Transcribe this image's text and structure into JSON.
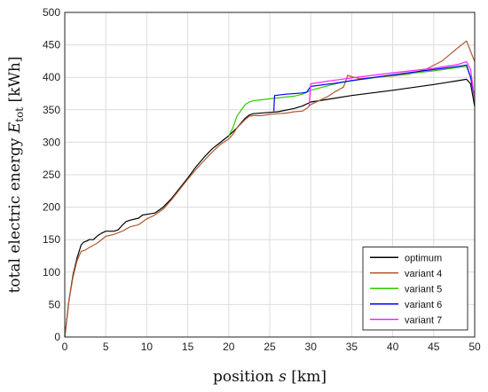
{
  "chart_data": {
    "type": "line",
    "title": "",
    "xlabel": {
      "prefix": "position ",
      "var": "s",
      "suffix": " [km]"
    },
    "ylabel": {
      "prefix": "total electric energy ",
      "var": "E",
      "sub": "tot",
      "suffix": " [kWh]"
    },
    "xlim": [
      0,
      50
    ],
    "ylim": [
      0,
      500
    ],
    "xticks": [
      "0",
      "5",
      "10",
      "15",
      "20",
      "25",
      "30",
      "35",
      "40",
      "45",
      "50"
    ],
    "yticks": [
      "0",
      "50",
      "100",
      "150",
      "200",
      "250",
      "300",
      "350",
      "400",
      "450",
      "500"
    ],
    "grid": true,
    "legend": "bottom-right",
    "series": [
      {
        "name": "optimum",
        "color": "#000000",
        "points": [
          [
            0,
            0
          ],
          [
            0.5,
            55
          ],
          [
            1,
            95
          ],
          [
            1.5,
            122
          ],
          [
            2,
            142
          ],
          [
            2.3,
            146
          ],
          [
            2.7,
            148
          ],
          [
            3,
            150
          ],
          [
            3.5,
            150
          ],
          [
            4,
            156
          ],
          [
            4.5,
            160
          ],
          [
            5,
            163
          ],
          [
            6,
            163
          ],
          [
            6.5,
            165
          ],
          [
            7,
            172
          ],
          [
            7.5,
            178
          ],
          [
            8,
            180
          ],
          [
            9,
            183
          ],
          [
            9.5,
            188
          ],
          [
            10,
            189
          ],
          [
            11,
            191
          ],
          [
            12,
            200
          ],
          [
            13,
            213
          ],
          [
            14,
            229
          ],
          [
            15,
            245
          ],
          [
            16,
            262
          ],
          [
            17,
            277
          ],
          [
            18,
            290
          ],
          [
            19,
            300
          ],
          [
            20,
            310
          ],
          [
            21,
            322
          ],
          [
            22,
            337
          ],
          [
            22.5,
            342
          ],
          [
            23,
            344
          ],
          [
            25,
            346
          ],
          [
            26,
            347
          ],
          [
            28,
            352
          ],
          [
            29,
            356
          ],
          [
            30,
            362
          ],
          [
            31,
            364
          ],
          [
            35,
            372
          ],
          [
            40,
            380
          ],
          [
            45,
            389
          ],
          [
            49,
            397
          ],
          [
            49.5,
            390
          ],
          [
            50,
            355
          ]
        ]
      },
      {
        "name": "variant 4",
        "color": "#b05a30",
        "points": [
          [
            0,
            0
          ],
          [
            0.5,
            55
          ],
          [
            1,
            92
          ],
          [
            1.5,
            118
          ],
          [
            2,
            132
          ],
          [
            2.5,
            134
          ],
          [
            3,
            138
          ],
          [
            4,
            145
          ],
          [
            5,
            155
          ],
          [
            6,
            158
          ],
          [
            7,
            163
          ],
          [
            8,
            170
          ],
          [
            9,
            173
          ],
          [
            10,
            182
          ],
          [
            11,
            188
          ],
          [
            12,
            197
          ],
          [
            13,
            211
          ],
          [
            14,
            227
          ],
          [
            15,
            243
          ],
          [
            16,
            258
          ],
          [
            17,
            272
          ],
          [
            18,
            285
          ],
          [
            19,
            297
          ],
          [
            20,
            305
          ],
          [
            20.5,
            312
          ],
          [
            21,
            322
          ],
          [
            22,
            335
          ],
          [
            22.5,
            340
          ],
          [
            23,
            341
          ],
          [
            24,
            341
          ],
          [
            25,
            343
          ],
          [
            26,
            344
          ],
          [
            27,
            345
          ],
          [
            28,
            347
          ],
          [
            29,
            348
          ],
          [
            29.5,
            352
          ],
          [
            30,
            358
          ],
          [
            31,
            364
          ],
          [
            32,
            370
          ],
          [
            33,
            378
          ],
          [
            34,
            385
          ],
          [
            34.5,
            403
          ],
          [
            35,
            401
          ],
          [
            36,
            398
          ],
          [
            38,
            400
          ],
          [
            40,
            402
          ],
          [
            42,
            405
          ],
          [
            44,
            412
          ],
          [
            46,
            425
          ],
          [
            48,
            446
          ],
          [
            49,
            456
          ],
          [
            49.5,
            440
          ],
          [
            50,
            424
          ]
        ]
      },
      {
        "name": "variant 5",
        "color": "#33cc00",
        "points": [
          [
            20,
            310
          ],
          [
            20.5,
            322
          ],
          [
            21,
            340
          ],
          [
            22,
            358
          ],
          [
            22.5,
            362
          ],
          [
            23,
            364
          ],
          [
            25,
            367
          ],
          [
            28,
            371
          ],
          [
            29,
            374
          ],
          [
            30,
            380
          ],
          [
            33,
            390
          ],
          [
            35,
            395
          ],
          [
            40,
            403
          ],
          [
            45,
            410
          ],
          [
            49,
            417
          ],
          [
            49.5,
            400
          ],
          [
            50,
            370
          ]
        ]
      },
      {
        "name": "variant 6",
        "color": "#0000ff",
        "points": [
          [
            25.5,
            348
          ],
          [
            25.6,
            372
          ],
          [
            27,
            374
          ],
          [
            29,
            376
          ],
          [
            29.5,
            377
          ],
          [
            30,
            386
          ],
          [
            33,
            391
          ],
          [
            35,
            395
          ],
          [
            40,
            404
          ],
          [
            45,
            412
          ],
          [
            48,
            417
          ],
          [
            49,
            419
          ],
          [
            49.5,
            400
          ],
          [
            50,
            367
          ]
        ]
      },
      {
        "name": "variant 7",
        "color": "#ff22ff",
        "points": [
          [
            29.8,
            356
          ],
          [
            30,
            390
          ],
          [
            32,
            394
          ],
          [
            35,
            399
          ],
          [
            40,
            407
          ],
          [
            45,
            414
          ],
          [
            48,
            420
          ],
          [
            49,
            424
          ],
          [
            49.5,
            412
          ],
          [
            50,
            365
          ]
        ]
      }
    ]
  }
}
